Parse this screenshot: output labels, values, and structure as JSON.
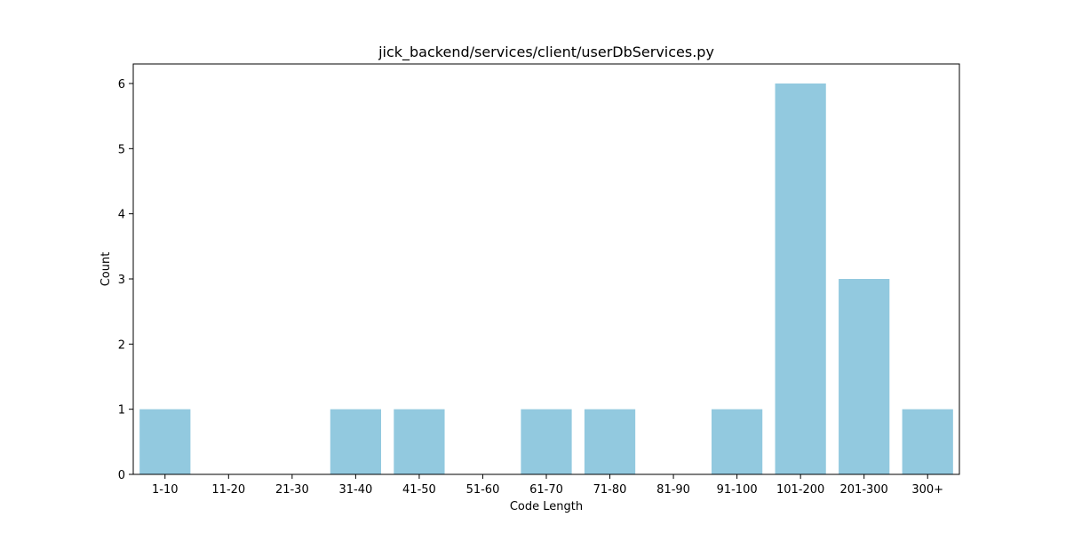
{
  "chart_data": {
    "type": "bar",
    "title": "jick_backend/services/client/userDbServices.py",
    "xlabel": "Code Length",
    "ylabel": "Count",
    "categories": [
      "1-10",
      "11-20",
      "21-30",
      "31-40",
      "41-50",
      "51-60",
      "61-70",
      "71-80",
      "81-90",
      "91-100",
      "101-200",
      "201-300",
      "300+"
    ],
    "values": [
      1,
      0,
      0,
      1,
      1,
      0,
      1,
      1,
      0,
      1,
      6,
      3,
      1
    ],
    "ylim": [
      0,
      6.3
    ],
    "yticks": [
      0,
      1,
      2,
      3,
      4,
      5,
      6
    ],
    "bar_color": "#92c9df",
    "grid": false,
    "legend": "none"
  }
}
